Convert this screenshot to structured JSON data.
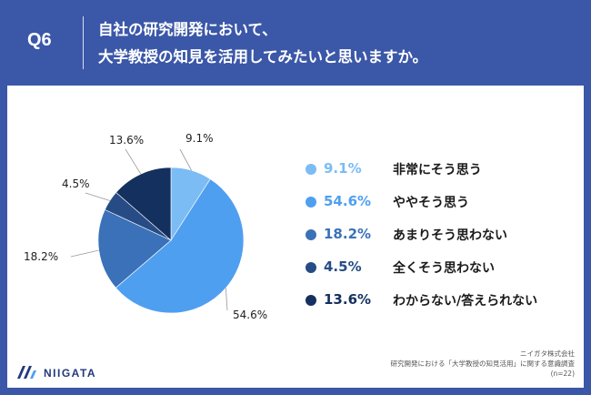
{
  "header": {
    "question_number": "Q6",
    "title_line1": "自社の研究開発において、",
    "title_line2": "大学教授の知見を活用してみたいと思いますか。"
  },
  "colors": {
    "header_bg": "#3b57a8",
    "panel_bg": "#ffffff"
  },
  "chart_data": {
    "type": "pie",
    "slices": [
      {
        "label": "非常にそう思う",
        "value": 9.1,
        "display": "9.1%",
        "color": "#7bbcf5"
      },
      {
        "label": "ややそう思う",
        "value": 54.6,
        "display": "54.6%",
        "color": "#4f9ff0"
      },
      {
        "label": "あまりそう思わない",
        "value": 18.2,
        "display": "18.2%",
        "color": "#3a71b8"
      },
      {
        "label": "全くそう思わない",
        "value": 4.5,
        "display": "4.5%",
        "color": "#274c85"
      },
      {
        "label": "わからない/答えられない",
        "value": 13.6,
        "display": "13.6%",
        "color": "#14305f"
      }
    ],
    "start_angle_deg": 0,
    "direction": "clockwise",
    "legend_position": "right"
  },
  "footer": {
    "logo_text": "NIIGATA",
    "credit_line1": "ニイガタ株式会社",
    "credit_line2": "研究開発における「大学教授の知見活用」に関する意識調査",
    "credit_line3": "(n=22)"
  }
}
